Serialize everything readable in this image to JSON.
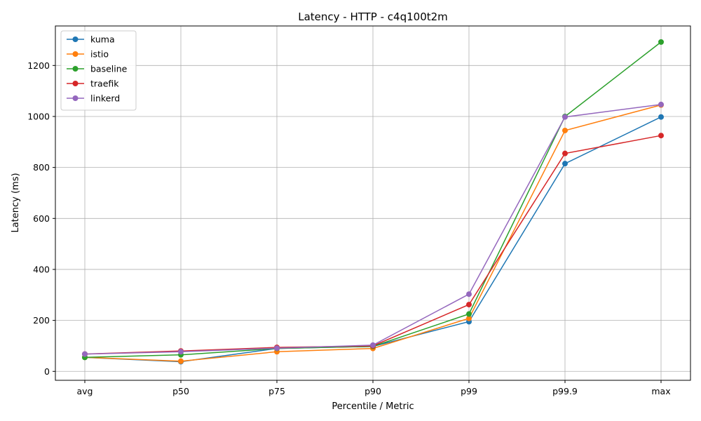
{
  "chart_data": {
    "type": "line",
    "title": "Latency - HTTP - c4q100t2m",
    "xlabel": "Percentile / Metric",
    "ylabel": "Latency (ms)",
    "categories": [
      "avg",
      "p50",
      "p75",
      "p90",
      "p99",
      "p99.9",
      "max"
    ],
    "ylim": [
      -35,
      1355
    ],
    "yticks": [
      0,
      200,
      400,
      600,
      800,
      1000,
      1200
    ],
    "grid": true,
    "legend": "top-left",
    "series": [
      {
        "name": "kuma",
        "color": "#1f77b4",
        "values": [
          55,
          38,
          90,
          98,
          195,
          815,
          998
        ]
      },
      {
        "name": "istio",
        "color": "#ff7f0e",
        "values": [
          55,
          40,
          77,
          90,
          208,
          945,
          1045
        ]
      },
      {
        "name": "baseline",
        "color": "#2ca02c",
        "values": [
          55,
          65,
          90,
          98,
          225,
          1000,
          1292
        ]
      },
      {
        "name": "traefik",
        "color": "#d62728",
        "values": [
          68,
          80,
          94,
          100,
          262,
          855,
          925
        ]
      },
      {
        "name": "linkerd",
        "color": "#9467bd",
        "values": [
          68,
          77,
          91,
          103,
          303,
          998,
          1047
        ]
      }
    ]
  }
}
